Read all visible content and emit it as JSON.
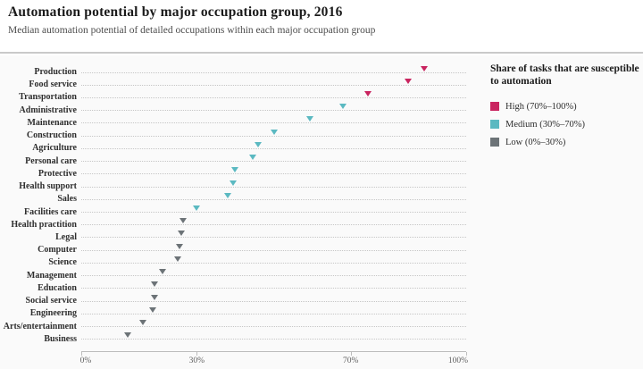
{
  "header": {
    "title": "Automation potential by major occupation group, 2016",
    "subtitle": "Median automation potential of detailed occupations within each major occupation group"
  },
  "legend": {
    "title": "Share of tasks that are susceptible to automation",
    "items": [
      {
        "label": "High (70%–100%)",
        "level": "high"
      },
      {
        "label": "Medium (30%–70%)",
        "level": "medium"
      },
      {
        "label": "Low (0%–30%)",
        "level": "low"
      }
    ]
  },
  "colors": {
    "high": "#c9245f",
    "medium": "#5bb9c1",
    "low": "#6c7377"
  },
  "chart_data": {
    "type": "scatter",
    "marker": "triangle-down",
    "title": "Automation potential by major occupation group, 2016",
    "xlabel": "",
    "ylabel": "",
    "xlim": [
      0,
      100
    ],
    "x_ticks": [
      0,
      30,
      70,
      100
    ],
    "x_tick_labels": [
      "0%",
      "30%",
      "70%",
      "100%"
    ],
    "grid": "dotted-horizontal",
    "legend_position": "right",
    "categories": [
      {
        "label": "Production",
        "value": 89,
        "level": "high"
      },
      {
        "label": "Food service",
        "value": 85,
        "level": "high"
      },
      {
        "label": "Transportation",
        "value": 74.5,
        "level": "high"
      },
      {
        "label": "Administrative",
        "value": 68,
        "level": "medium"
      },
      {
        "label": "Maintenance",
        "value": 59.5,
        "level": "medium"
      },
      {
        "label": "Construction",
        "value": 50,
        "level": "medium"
      },
      {
        "label": "Agriculture",
        "value": 46,
        "level": "medium"
      },
      {
        "label": "Personal care",
        "value": 44.5,
        "level": "medium"
      },
      {
        "label": "Protective",
        "value": 40,
        "level": "medium"
      },
      {
        "label": "Health support",
        "value": 39.5,
        "level": "medium"
      },
      {
        "label": "Sales",
        "value": 38,
        "level": "medium"
      },
      {
        "label": "Facilities care",
        "value": 30,
        "level": "medium"
      },
      {
        "label": "Health practition",
        "value": 26.5,
        "level": "low"
      },
      {
        "label": "Legal",
        "value": 26,
        "level": "low"
      },
      {
        "label": "Computer",
        "value": 25.5,
        "level": "low"
      },
      {
        "label": "Science",
        "value": 25,
        "level": "low"
      },
      {
        "label": "Management",
        "value": 21,
        "level": "low"
      },
      {
        "label": "Education",
        "value": 19,
        "level": "low"
      },
      {
        "label": "Social service",
        "value": 19,
        "level": "low"
      },
      {
        "label": "Engineering",
        "value": 18.5,
        "level": "low"
      },
      {
        "label": "Arts/entertainment",
        "value": 16,
        "level": "low"
      },
      {
        "label": "Business",
        "value": 12,
        "level": "low"
      }
    ]
  }
}
